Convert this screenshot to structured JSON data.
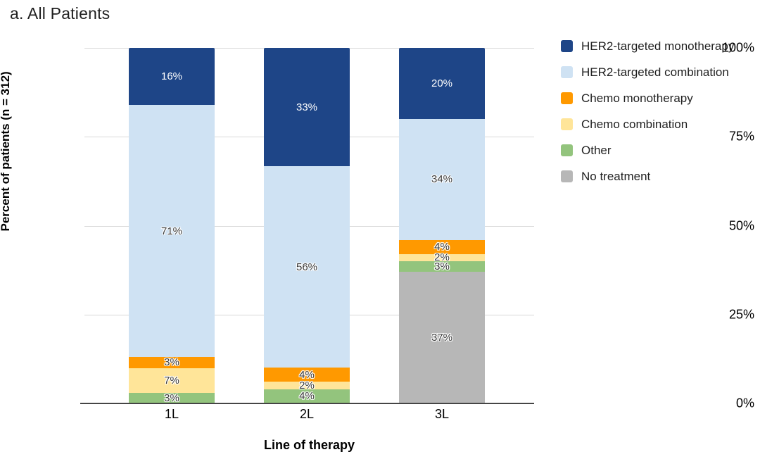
{
  "title": "a. All Patients",
  "chart_data": {
    "type": "bar",
    "stacked": true,
    "title": "a. All Patients",
    "xlabel": "Line of therapy",
    "ylabel": "Percent of patients (n = 312)",
    "categories": [
      "1L",
      "2L",
      "3L"
    ],
    "yticks": [
      0,
      25,
      50,
      75,
      100
    ],
    "ytick_labels": [
      "0%",
      "25%",
      "50%",
      "75%",
      "100%"
    ],
    "ylim": [
      0,
      100
    ],
    "grid": true,
    "legend_position": "right",
    "label_suffix": "%",
    "series": [
      {
        "name": "HER2-targeted monotherapy",
        "color": "#1e4587",
        "label_on_dark": true,
        "values": [
          16,
          33,
          20
        ]
      },
      {
        "name": "HER2-targeted combination",
        "color": "#cfe2f3",
        "label_on_dark": false,
        "values": [
          71,
          56,
          34
        ]
      },
      {
        "name": "Chemo monotherapy",
        "color": "#ff9900",
        "label_on_dark": false,
        "values": [
          3,
          4,
          4
        ]
      },
      {
        "name": "Chemo combination",
        "color": "#ffe599",
        "label_on_dark": false,
        "values": [
          7,
          2,
          2
        ]
      },
      {
        "name": "Other",
        "color": "#93c47d",
        "label_on_dark": false,
        "values": [
          3,
          4,
          3
        ]
      },
      {
        "name": "No treatment",
        "color": "#b7b7b7",
        "label_on_dark": false,
        "values": [
          0,
          0,
          37
        ]
      }
    ],
    "colors": {
      "gridline": "#d9d9d9",
      "axis_line": "#454545",
      "background": "#ffffff"
    }
  }
}
